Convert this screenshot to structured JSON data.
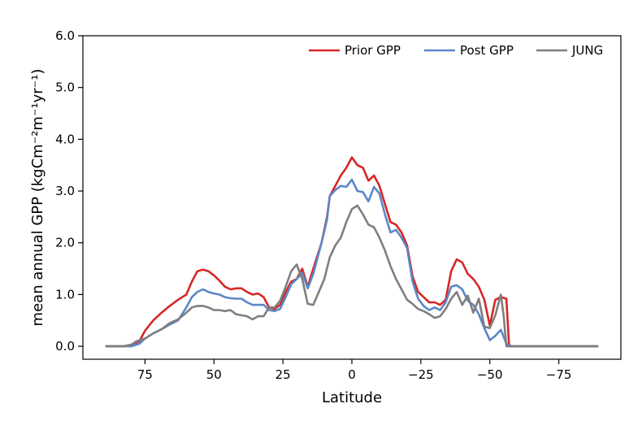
{
  "chart_data": {
    "type": "line",
    "xlabel": "Latitude",
    "ylabel": "mean annual GPP (kgCm⁻²m⁻¹yr⁻¹)",
    "xlim": [
      97.5,
      -97.5
    ],
    "ylim": [
      -0.25,
      6.0
    ],
    "x_ticks": [
      75,
      50,
      25,
      0,
      -25,
      -50,
      -75
    ],
    "x_tick_labels": [
      "75",
      "50",
      "25",
      "0",
      "−25",
      "−50",
      "−75"
    ],
    "y_ticks": [
      0,
      1,
      2,
      3,
      4,
      5,
      6
    ],
    "y_tick_labels": [
      "0.0",
      "1.0",
      "2.0",
      "3.0",
      "4.0",
      "5.0",
      "6.0"
    ],
    "grid": false,
    "legend_position": "top-right",
    "series": [
      {
        "name": "Prior GPP",
        "color": "#d62728",
        "points": [
          [
            89,
            0
          ],
          [
            83,
            0
          ],
          [
            80,
            0.03
          ],
          [
            77,
            0.1
          ],
          [
            75,
            0.3
          ],
          [
            72,
            0.5
          ],
          [
            69,
            0.65
          ],
          [
            66,
            0.78
          ],
          [
            63,
            0.9
          ],
          [
            60,
            1.0
          ],
          [
            58,
            1.25
          ],
          [
            56,
            1.45
          ],
          [
            54,
            1.48
          ],
          [
            52,
            1.45
          ],
          [
            50,
            1.37
          ],
          [
            48,
            1.27
          ],
          [
            46,
            1.15
          ],
          [
            44,
            1.1
          ],
          [
            42,
            1.12
          ],
          [
            40,
            1.12
          ],
          [
            38,
            1.05
          ],
          [
            36,
            1.0
          ],
          [
            34,
            1.02
          ],
          [
            32,
            0.95
          ],
          [
            30,
            0.75
          ],
          [
            28,
            0.72
          ],
          [
            26,
            0.8
          ],
          [
            24,
            1.05
          ],
          [
            22,
            1.25
          ],
          [
            20,
            1.3
          ],
          [
            18,
            1.5
          ],
          [
            16,
            1.15
          ],
          [
            14,
            1.5
          ],
          [
            11,
            2.0
          ],
          [
            9,
            2.5
          ],
          [
            8,
            2.9
          ],
          [
            6,
            3.1
          ],
          [
            4,
            3.3
          ],
          [
            2,
            3.45
          ],
          [
            0,
            3.65
          ],
          [
            -2,
            3.5
          ],
          [
            -4,
            3.45
          ],
          [
            -6,
            3.2
          ],
          [
            -8,
            3.3
          ],
          [
            -10,
            3.1
          ],
          [
            -12,
            2.75
          ],
          [
            -14,
            2.4
          ],
          [
            -16,
            2.35
          ],
          [
            -18,
            2.2
          ],
          [
            -20,
            1.95
          ],
          [
            -22,
            1.35
          ],
          [
            -24,
            1.05
          ],
          [
            -26,
            0.95
          ],
          [
            -28,
            0.85
          ],
          [
            -30,
            0.85
          ],
          [
            -32,
            0.8
          ],
          [
            -34,
            0.9
          ],
          [
            -36,
            1.45
          ],
          [
            -38,
            1.68
          ],
          [
            -40,
            1.62
          ],
          [
            -42,
            1.4
          ],
          [
            -44,
            1.3
          ],
          [
            -46,
            1.15
          ],
          [
            -48,
            0.9
          ],
          [
            -50,
            0.4
          ],
          [
            -52,
            0.9
          ],
          [
            -54,
            0.95
          ],
          [
            -56,
            0.92
          ],
          [
            -57,
            0
          ],
          [
            -60,
            0
          ],
          [
            -89,
            0
          ]
        ]
      },
      {
        "name": "Post GPP",
        "color": "#5b87c6",
        "points": [
          [
            89,
            0
          ],
          [
            83,
            0
          ],
          [
            80,
            0
          ],
          [
            77,
            0.05
          ],
          [
            75,
            0.15
          ],
          [
            72,
            0.25
          ],
          [
            69,
            0.33
          ],
          [
            66,
            0.42
          ],
          [
            63,
            0.5
          ],
          [
            60,
            0.75
          ],
          [
            58,
            0.95
          ],
          [
            56,
            1.05
          ],
          [
            54,
            1.1
          ],
          [
            52,
            1.05
          ],
          [
            50,
            1.02
          ],
          [
            48,
            1.0
          ],
          [
            46,
            0.95
          ],
          [
            44,
            0.93
          ],
          [
            42,
            0.92
          ],
          [
            40,
            0.92
          ],
          [
            38,
            0.85
          ],
          [
            36,
            0.8
          ],
          [
            34,
            0.8
          ],
          [
            32,
            0.8
          ],
          [
            30,
            0.7
          ],
          [
            28,
            0.68
          ],
          [
            26,
            0.72
          ],
          [
            24,
            0.95
          ],
          [
            22,
            1.2
          ],
          [
            20,
            1.3
          ],
          [
            18,
            1.42
          ],
          [
            16,
            1.12
          ],
          [
            14,
            1.4
          ],
          [
            11,
            2.0
          ],
          [
            9,
            2.45
          ],
          [
            8,
            2.9
          ],
          [
            6,
            3.02
          ],
          [
            4,
            3.1
          ],
          [
            2,
            3.08
          ],
          [
            0,
            3.22
          ],
          [
            -2,
            3.0
          ],
          [
            -4,
            2.98
          ],
          [
            -6,
            2.8
          ],
          [
            -8,
            3.08
          ],
          [
            -10,
            2.95
          ],
          [
            -12,
            2.55
          ],
          [
            -14,
            2.2
          ],
          [
            -16,
            2.25
          ],
          [
            -18,
            2.1
          ],
          [
            -20,
            1.9
          ],
          [
            -22,
            1.25
          ],
          [
            -24,
            0.92
          ],
          [
            -26,
            0.78
          ],
          [
            -28,
            0.7
          ],
          [
            -30,
            0.75
          ],
          [
            -32,
            0.7
          ],
          [
            -34,
            0.85
          ],
          [
            -36,
            1.15
          ],
          [
            -38,
            1.18
          ],
          [
            -40,
            1.1
          ],
          [
            -42,
            0.88
          ],
          [
            -44,
            0.8
          ],
          [
            -46,
            0.62
          ],
          [
            -48,
            0.35
          ],
          [
            -50,
            0.12
          ],
          [
            -52,
            0.2
          ],
          [
            -54,
            0.32
          ],
          [
            -56,
            0.05
          ],
          [
            -58,
            0
          ],
          [
            -60,
            0
          ],
          [
            -89,
            0
          ]
        ]
      },
      {
        "name": "JUNG",
        "color": "#7f7f7f",
        "points": [
          [
            89,
            0
          ],
          [
            83,
            0
          ],
          [
            80,
            0.03
          ],
          [
            78,
            0.1
          ],
          [
            75,
            0.15
          ],
          [
            72,
            0.25
          ],
          [
            69,
            0.33
          ],
          [
            66,
            0.45
          ],
          [
            63,
            0.52
          ],
          [
            60,
            0.65
          ],
          [
            58,
            0.75
          ],
          [
            56,
            0.78
          ],
          [
            54,
            0.78
          ],
          [
            52,
            0.75
          ],
          [
            50,
            0.7
          ],
          [
            48,
            0.7
          ],
          [
            46,
            0.68
          ],
          [
            44,
            0.7
          ],
          [
            42,
            0.62
          ],
          [
            40,
            0.6
          ],
          [
            38,
            0.58
          ],
          [
            36,
            0.52
          ],
          [
            34,
            0.58
          ],
          [
            32,
            0.58
          ],
          [
            30,
            0.75
          ],
          [
            28,
            0.75
          ],
          [
            26,
            0.88
          ],
          [
            24,
            1.15
          ],
          [
            22,
            1.45
          ],
          [
            20,
            1.58
          ],
          [
            18,
            1.3
          ],
          [
            16,
            0.82
          ],
          [
            14,
            0.8
          ],
          [
            12,
            1.05
          ],
          [
            10,
            1.3
          ],
          [
            8,
            1.72
          ],
          [
            6,
            1.95
          ],
          [
            4,
            2.1
          ],
          [
            2,
            2.4
          ],
          [
            0,
            2.65
          ],
          [
            -2,
            2.72
          ],
          [
            -4,
            2.55
          ],
          [
            -6,
            2.35
          ],
          [
            -8,
            2.3
          ],
          [
            -10,
            2.1
          ],
          [
            -12,
            1.85
          ],
          [
            -14,
            1.55
          ],
          [
            -16,
            1.3
          ],
          [
            -18,
            1.1
          ],
          [
            -20,
            0.9
          ],
          [
            -22,
            0.82
          ],
          [
            -24,
            0.72
          ],
          [
            -26,
            0.68
          ],
          [
            -28,
            0.62
          ],
          [
            -30,
            0.55
          ],
          [
            -32,
            0.58
          ],
          [
            -34,
            0.72
          ],
          [
            -36,
            0.92
          ],
          [
            -38,
            1.05
          ],
          [
            -40,
            0.8
          ],
          [
            -42,
            0.98
          ],
          [
            -44,
            0.65
          ],
          [
            -46,
            0.92
          ],
          [
            -48,
            0.38
          ],
          [
            -50,
            0.35
          ],
          [
            -52,
            0.6
          ],
          [
            -54,
            1.0
          ],
          [
            -55,
            0.6
          ],
          [
            -56,
            0
          ],
          [
            -58,
            0
          ],
          [
            -89,
            0
          ]
        ]
      }
    ]
  }
}
